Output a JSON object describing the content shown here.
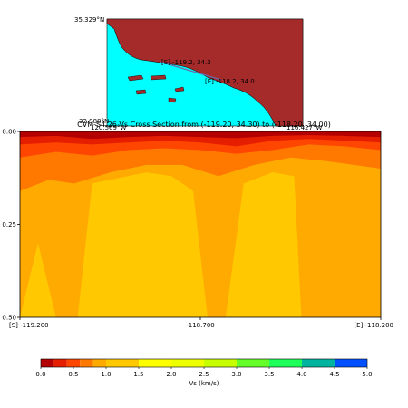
{
  "chart_data": {
    "type": "heatmap",
    "title": "CVM-S4.26 Vs Cross Section from (-119.20, 34.30) to (-118.20, 34.00)",
    "map": {
      "lat_top_label": "35.329°N",
      "lat_bottom_label": "32.988°N",
      "lon_left_label": "120.569°W",
      "lon_right_label": "116.427°W",
      "start_label": "[S] -119.2, 34.3",
      "end_label": "[E] -118.2, 34.0",
      "colors": {
        "ocean": "#00ffff",
        "land": "#a52a2a",
        "track": "#6a6aa8"
      }
    },
    "x_ticks": [
      "[S] -119.200",
      "-118.700",
      "[E] -118.200"
    ],
    "x_range": [
      -119.2,
      -118.2
    ],
    "y_ticks": [
      "0.00",
      "0.25",
      "0.50"
    ],
    "y_range": [
      0,
      0.5
    ],
    "y_inverted": true,
    "colorbar": {
      "label": "Vs (km/s)",
      "bounds": [
        0.0,
        0.2,
        0.4,
        0.6,
        0.8,
        1.0,
        1.5,
        2.0,
        2.5,
        3.0,
        3.5,
        4.0,
        4.5,
        5.0
      ],
      "tick_labels": [
        "0.0",
        "0.5",
        "1.0",
        "1.5",
        "2.0",
        "2.5",
        "3.0",
        "3.5",
        "4.0",
        "4.5",
        "5.0"
      ],
      "tick_values": [
        0.0,
        0.5,
        1.0,
        1.5,
        2.0,
        2.5,
        3.0,
        3.5,
        4.0,
        4.5,
        5.0
      ],
      "colors": [
        "#b40000",
        "#e61e00",
        "#ff4600",
        "#ff7800",
        "#ffaa00",
        "#ffc800",
        "#ffff00",
        "#eeff00",
        "#c8ff00",
        "#64ff28",
        "#1eff5a",
        "#00b4a0",
        "#0050ff"
      ]
    },
    "layers": [
      {
        "name": "0.2-0.4",
        "color": "#e61e00",
        "depth": [
          [
            -119.2,
            0.015
          ],
          [
            -119.1,
            0.012
          ],
          [
            -119.0,
            0.02
          ],
          [
            -118.9,
            0.015
          ],
          [
            -118.8,
            0.012
          ],
          [
            -118.7,
            0.015
          ],
          [
            -118.6,
            0.018
          ],
          [
            -118.5,
            0.012
          ],
          [
            -118.4,
            0.01
          ],
          [
            -118.3,
            0.012
          ],
          [
            -118.2,
            0.015
          ]
        ]
      },
      {
        "name": "0.4-0.6",
        "color": "#ff4600",
        "depth": [
          [
            -119.2,
            0.035
          ],
          [
            -119.1,
            0.03
          ],
          [
            -119.0,
            0.035
          ],
          [
            -118.9,
            0.03
          ],
          [
            -118.8,
            0.025
          ],
          [
            -118.7,
            0.03
          ],
          [
            -118.6,
            0.04
          ],
          [
            -118.5,
            0.025
          ],
          [
            -118.4,
            0.02
          ],
          [
            -118.3,
            0.025
          ],
          [
            -118.2,
            0.03
          ]
        ]
      },
      {
        "name": "0.6-0.8",
        "color": "#ff7800",
        "depth": [
          [
            -119.2,
            0.07
          ],
          [
            -119.1,
            0.055
          ],
          [
            -119.0,
            0.065
          ],
          [
            -118.9,
            0.05
          ],
          [
            -118.8,
            0.045
          ],
          [
            -118.7,
            0.05
          ],
          [
            -118.6,
            0.06
          ],
          [
            -118.5,
            0.05
          ],
          [
            -118.4,
            0.035
          ],
          [
            -118.3,
            0.04
          ],
          [
            -118.2,
            0.05
          ]
        ]
      },
      {
        "name": "0.8-1.0",
        "color": "#ffaa00",
        "depth": [
          [
            -119.2,
            0.16
          ],
          [
            -119.12,
            0.13
          ],
          [
            -119.05,
            0.14
          ],
          [
            -118.95,
            0.11
          ],
          [
            -118.85,
            0.09
          ],
          [
            -118.75,
            0.09
          ],
          [
            -118.65,
            0.12
          ],
          [
            -118.55,
            0.09
          ],
          [
            -118.45,
            0.07
          ],
          [
            -118.35,
            0.08
          ],
          [
            -118.2,
            0.1
          ]
        ]
      },
      {
        "name": "1.0-1.5",
        "color": "#ffc800",
        "depth": [
          [
            -119.2,
            0.5
          ],
          [
            -119.15,
            0.3
          ],
          [
            -119.1,
            0.5
          ],
          [
            -119.04,
            0.5
          ],
          [
            -119.0,
            0.14
          ],
          [
            -118.95,
            0.13
          ],
          [
            -118.85,
            0.11
          ],
          [
            -118.78,
            0.12
          ],
          [
            -118.72,
            0.16
          ],
          [
            -118.68,
            0.5
          ],
          [
            -118.63,
            0.5
          ],
          [
            -118.58,
            0.14
          ],
          [
            -118.5,
            0.11
          ],
          [
            -118.44,
            0.12
          ],
          [
            -118.42,
            0.5
          ],
          [
            -118.2,
            0.5
          ]
        ]
      },
      {
        "name": "1.5-2.0",
        "color": "#ffff00",
        "depth": [
          [
            -119.0,
            0.5
          ],
          [
            -118.68,
            0.5
          ],
          [
            -118.58,
            0.5
          ],
          [
            -118.44,
            0.5
          ]
        ]
      },
      {
        "name": "2.5-3.0",
        "color": "#c8ff00",
        "depth": [
          [
            -118.98,
            0.5
          ],
          [
            -118.92,
            0.5
          ],
          [
            -118.55,
            0.5
          ],
          [
            -118.47,
            0.5
          ]
        ]
      }
    ]
  }
}
